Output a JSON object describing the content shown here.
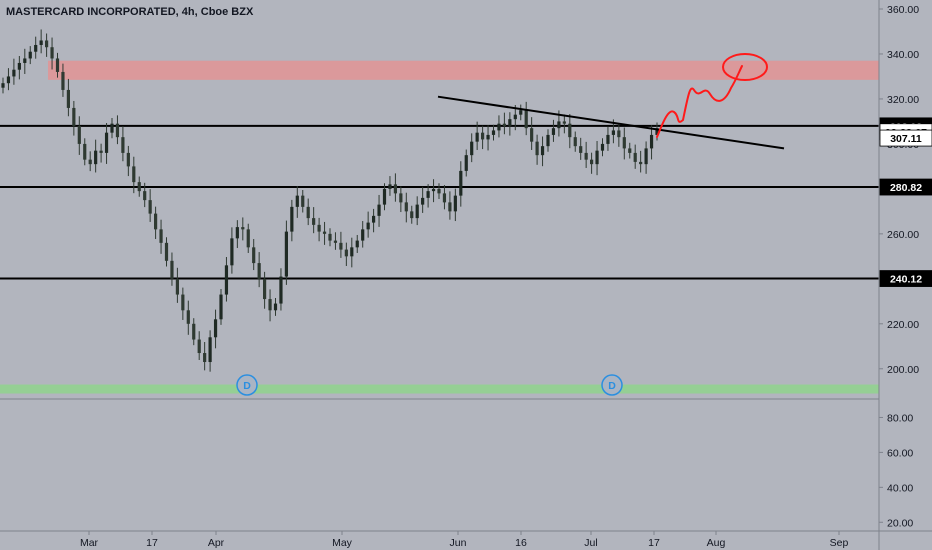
{
  "title": "MASTERCARD INCORPORATED, 4h, Cboe BZX",
  "colors": {
    "background": "#b2b5be",
    "candle": "#2f3a32",
    "candle_up": "#1f2a24",
    "line": "#000000",
    "resistance_zone": "#e8908f",
    "support_zone": "#8fd48d",
    "projection": "#ff1a1a",
    "dividend_marker": "#2b8fe0",
    "axis_text": "#131722"
  },
  "chart_data": [
    {
      "type": "candlestick",
      "title": "MASTERCARD INCORPORATED, 4h, Cboe BZX",
      "x_ticks": [
        "Mar",
        "17",
        "Apr",
        "May",
        "Jun",
        "16",
        "Jul",
        "17",
        "Aug",
        "Sep"
      ],
      "y_ticks": [
        "360.00",
        "340.00",
        "320.00",
        "300.00",
        "280.00",
        "260.00",
        "240.00",
        "220.00",
        "200.00"
      ],
      "ylim": [
        187,
        364
      ],
      "grid": false,
      "price_tags": [
        {
          "label": "308.03",
          "value": 308.03,
          "style": "black"
        },
        {
          "label": "03:22:07",
          "value": 305.4,
          "style": "white"
        },
        {
          "label": "307.11",
          "value": 302.6,
          "style": "white"
        },
        {
          "label": "280.82",
          "value": 280.82,
          "style": "black"
        },
        {
          "label": "240.12",
          "value": 240.12,
          "style": "black"
        }
      ],
      "horizontal_lines": [
        308.03,
        280.82,
        240.12
      ],
      "zones": [
        {
          "kind": "resistance",
          "y_top": 337,
          "y_bottom": 328.5
        },
        {
          "kind": "support",
          "y_top": 193,
          "y_bottom": 189
        }
      ],
      "trendline": {
        "start": [
          "Jun (early)",
          321
        ],
        "end": [
          "Aug (late)",
          298
        ]
      },
      "dividend_markers": [
        {
          "label": "D",
          "x": "Apr (early)"
        },
        {
          "label": "D",
          "x": "Jul (mid)"
        }
      ],
      "closes": [
        327,
        330,
        333,
        336,
        338,
        341,
        344,
        346,
        343,
        338,
        332,
        324,
        316,
        308,
        300,
        293,
        291,
        297,
        296,
        305,
        309,
        303,
        296,
        290,
        283,
        279,
        275,
        269,
        262,
        256,
        248,
        240,
        233,
        226,
        220,
        213,
        207,
        203,
        214,
        222,
        233,
        246,
        258,
        263,
        262,
        254,
        247,
        240,
        231,
        226,
        229,
        241,
        261,
        272,
        277,
        272,
        267,
        264,
        261,
        260,
        257,
        256,
        253,
        250,
        254,
        257,
        262,
        265,
        268,
        273,
        280,
        282,
        278,
        274,
        270,
        267,
        273,
        276,
        279,
        280,
        278,
        274,
        270,
        277,
        288,
        295,
        301,
        305,
        302,
        304,
        306,
        309,
        308,
        311,
        313,
        315,
        307,
        301,
        295,
        299,
        304,
        307,
        310,
        309,
        303,
        299,
        296,
        293,
        291,
        297,
        300,
        304,
        306,
        303,
        298,
        296,
        292,
        291,
        298,
        304,
        307
      ]
    },
    {
      "type": "bar",
      "y_ticks": [
        "80.00",
        "60.00",
        "40.00",
        "20.00"
      ],
      "ylim": [
        15,
        90
      ]
    }
  ]
}
